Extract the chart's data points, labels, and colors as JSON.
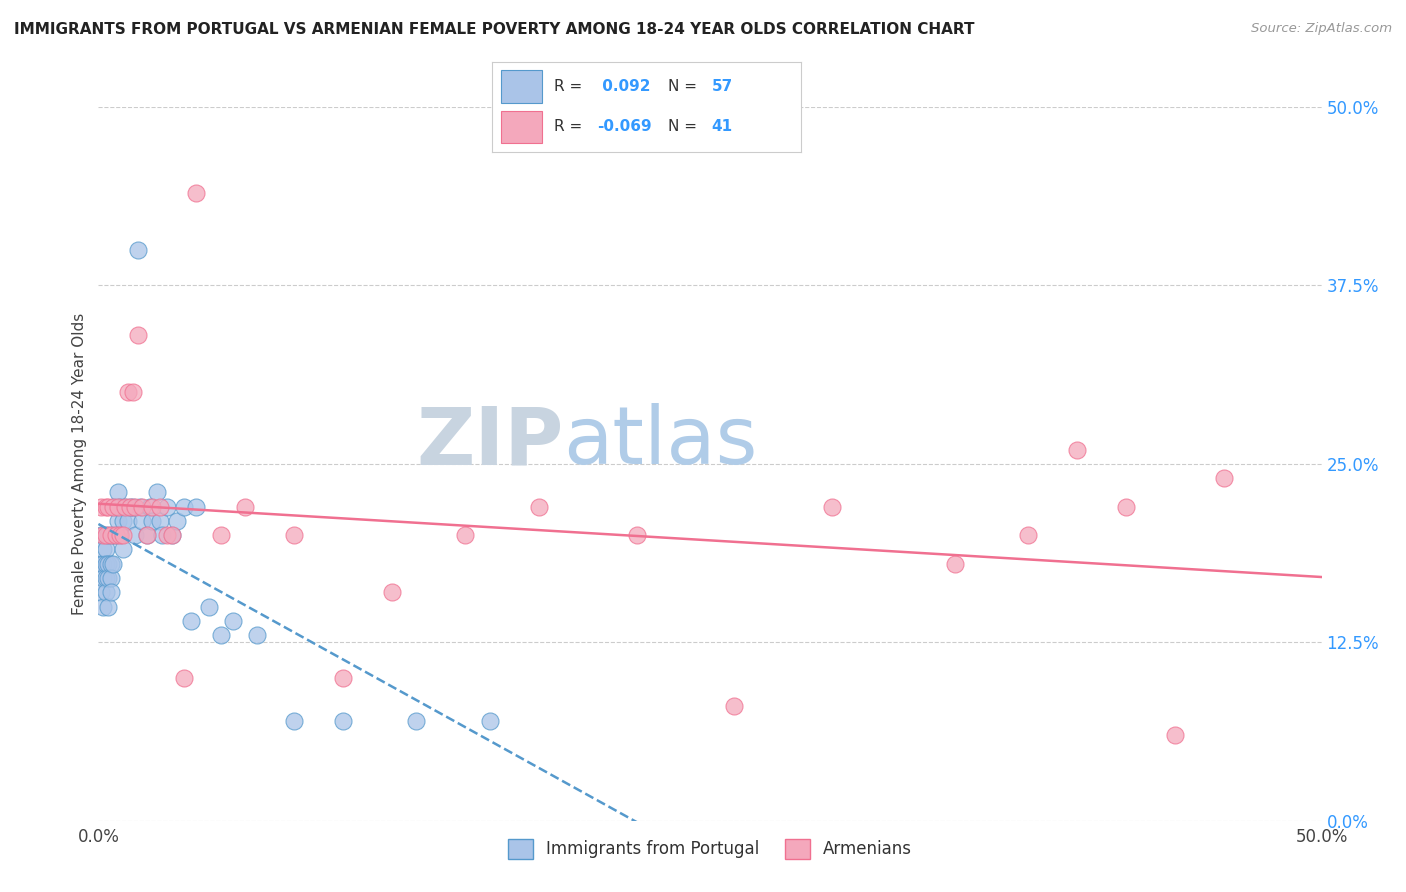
{
  "title": "IMMIGRANTS FROM PORTUGAL VS ARMENIAN FEMALE POVERTY AMONG 18-24 YEAR OLDS CORRELATION CHART",
  "source": "Source: ZipAtlas.com",
  "ylabel": "Female Poverty Among 18-24 Year Olds",
  "ytick_labels": [
    "0.0%",
    "12.5%",
    "25.0%",
    "37.5%",
    "50.0%"
  ],
  "ytick_values": [
    0.0,
    0.125,
    0.25,
    0.375,
    0.5
  ],
  "r_portugal": 0.092,
  "n_portugal": 57,
  "r_armenian": -0.069,
  "n_armenian": 41,
  "legend_labels": [
    "Immigrants from Portugal",
    "Armenians"
  ],
  "color_portugal": "#aac4e8",
  "color_armenian": "#f4a8bc",
  "trendline_portugal_color": "#5599cc",
  "trendline_armenian_color": "#f07090",
  "watermark_zip_color": "#c8d4e0",
  "watermark_atlas_color": "#b0c8e0",
  "background_color": "#ffffff",
  "portugal_x": [
    0.001,
    0.001,
    0.001,
    0.002,
    0.002,
    0.002,
    0.002,
    0.003,
    0.003,
    0.003,
    0.003,
    0.004,
    0.004,
    0.004,
    0.004,
    0.005,
    0.005,
    0.005,
    0.006,
    0.006,
    0.006,
    0.007,
    0.007,
    0.008,
    0.008,
    0.009,
    0.009,
    0.01,
    0.01,
    0.011,
    0.012,
    0.013,
    0.014,
    0.015,
    0.016,
    0.017,
    0.018,
    0.02,
    0.021,
    0.022,
    0.024,
    0.025,
    0.026,
    0.028,
    0.03,
    0.032,
    0.035,
    0.038,
    0.04,
    0.045,
    0.05,
    0.055,
    0.065,
    0.08,
    0.1,
    0.13,
    0.16
  ],
  "portugal_y": [
    0.2,
    0.18,
    0.16,
    0.19,
    0.18,
    0.17,
    0.15,
    0.19,
    0.18,
    0.17,
    0.16,
    0.2,
    0.18,
    0.17,
    0.15,
    0.18,
    0.17,
    0.16,
    0.22,
    0.2,
    0.18,
    0.22,
    0.2,
    0.23,
    0.21,
    0.22,
    0.2,
    0.21,
    0.19,
    0.22,
    0.21,
    0.22,
    0.22,
    0.2,
    0.4,
    0.22,
    0.21,
    0.2,
    0.22,
    0.21,
    0.23,
    0.21,
    0.2,
    0.22,
    0.2,
    0.21,
    0.22,
    0.14,
    0.22,
    0.15,
    0.13,
    0.14,
    0.13,
    0.07,
    0.07,
    0.07,
    0.07
  ],
  "armenian_x": [
    0.001,
    0.002,
    0.003,
    0.003,
    0.004,
    0.005,
    0.006,
    0.007,
    0.008,
    0.009,
    0.01,
    0.011,
    0.012,
    0.013,
    0.014,
    0.015,
    0.016,
    0.018,
    0.02,
    0.022,
    0.025,
    0.028,
    0.03,
    0.035,
    0.04,
    0.05,
    0.06,
    0.08,
    0.1,
    0.12,
    0.15,
    0.18,
    0.22,
    0.26,
    0.3,
    0.35,
    0.38,
    0.4,
    0.42,
    0.44,
    0.46
  ],
  "armenian_y": [
    0.22,
    0.2,
    0.22,
    0.2,
    0.22,
    0.2,
    0.22,
    0.2,
    0.22,
    0.2,
    0.2,
    0.22,
    0.3,
    0.22,
    0.3,
    0.22,
    0.34,
    0.22,
    0.2,
    0.22,
    0.22,
    0.2,
    0.2,
    0.1,
    0.44,
    0.2,
    0.22,
    0.2,
    0.1,
    0.16,
    0.2,
    0.22,
    0.2,
    0.08,
    0.22,
    0.18,
    0.2,
    0.26,
    0.22,
    0.06,
    0.24
  ]
}
